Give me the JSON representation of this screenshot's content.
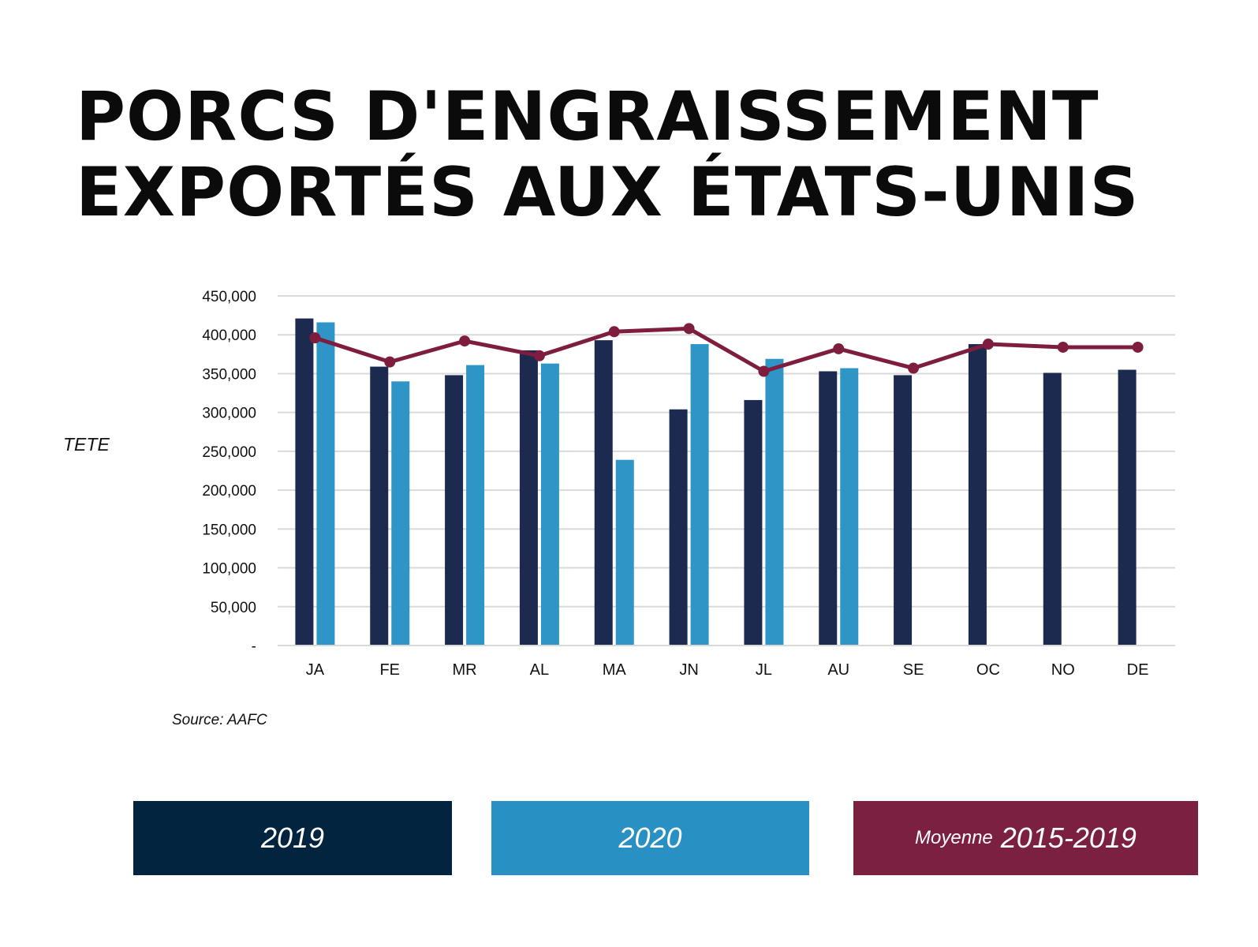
{
  "title": {
    "line1": "PORCS D'ENGRAISSEMENT",
    "line2": "EXPORTÉS AUX ÉTATS-UNIS"
  },
  "source": "Source: AAFC",
  "legend": {
    "y2019": "2019",
    "y2020": "2020",
    "avg_prefix": "Moyenne",
    "avg_years": "2015-2019"
  },
  "colors": {
    "s2019": "#1b2a4e",
    "s2020": "#2f95c7",
    "avg": "#7f1d3f",
    "legend2019": "#03243f",
    "legend2020": "#2890c2",
    "legendAvg": "#7c2042",
    "grid": "#d9d9d9"
  },
  "chart_data": {
    "type": "bar",
    "title": "PORCS D'ENGRAISSEMENT EXPORTÉS AUX ÉTATS-UNIS",
    "ylabel": "TETE",
    "xlabel": "",
    "ylim": [
      0,
      450000
    ],
    "yticks": [
      0,
      50000,
      100000,
      150000,
      200000,
      250000,
      300000,
      350000,
      400000,
      450000
    ],
    "ytick_labels": [
      "-",
      "50,000",
      "100,000",
      "150,000",
      "200,000",
      "250,000",
      "300,000",
      "350,000",
      "400,000",
      "450,000"
    ],
    "grid": true,
    "legend_position": "bottom",
    "categories": [
      "JA",
      "FE",
      "MR",
      "AL",
      "MA",
      "JN",
      "JL",
      "AU",
      "SE",
      "OC",
      "NO",
      "DE"
    ],
    "series": [
      {
        "name": "2019",
        "type": "bar",
        "values": [
          421000,
          359000,
          348000,
          380000,
          393000,
          304000,
          316000,
          353000,
          348000,
          388000,
          351000,
          355000
        ]
      },
      {
        "name": "2020",
        "type": "bar",
        "values": [
          416000,
          340000,
          361000,
          363000,
          239000,
          388000,
          369000,
          357000,
          null,
          null,
          null,
          null
        ]
      },
      {
        "name": "Moyenne 2015-2019",
        "type": "line",
        "values": [
          396000,
          365000,
          392000,
          373000,
          404000,
          408000,
          353000,
          382000,
          357000,
          388000,
          384000,
          384000
        ]
      }
    ]
  }
}
